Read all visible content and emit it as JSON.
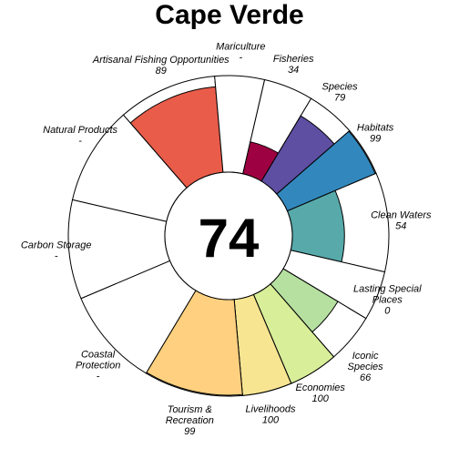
{
  "chart_data": {
    "type": "flower",
    "title": "Cape Verde",
    "center_score": "74",
    "scale_max": 100,
    "petals": [
      {
        "name": "Natural Products",
        "lines": [
          "Natural Products"
        ],
        "value_label": "-",
        "score": null,
        "weight": 1,
        "color": "#ffffff"
      },
      {
        "name": "Artisanal Fishing Opportunities",
        "lines": [
          "Artisanal Fishing Opportunities"
        ],
        "value_label": "89",
        "score": 89,
        "weight": 1,
        "color": "#e95c4a"
      },
      {
        "name": "Mariculture",
        "lines": [
          "Mariculture"
        ],
        "value_label": "-",
        "score": null,
        "weight": 0.5,
        "color": "#ffffff"
      },
      {
        "name": "Fisheries",
        "lines": [
          "Fisheries"
        ],
        "value_label": "34",
        "score": 34,
        "weight": 0.5,
        "color": "#9e0142"
      },
      {
        "name": "Species",
        "lines": [
          "Species"
        ],
        "value_label": "79",
        "score": 79,
        "weight": 0.5,
        "color": "#5e4fa2"
      },
      {
        "name": "Habitats",
        "lines": [
          "Habitats"
        ],
        "value_label": "99",
        "score": 99,
        "weight": 0.5,
        "color": "#3288bd"
      },
      {
        "name": "Clean Waters",
        "lines": [
          "Clean Waters"
        ],
        "value_label": "54",
        "score": 54,
        "weight": 1,
        "color": "#57a9aa"
      },
      {
        "name": "Lasting Special Places",
        "lines": [
          "Lasting Special",
          "Places"
        ],
        "value_label": "0",
        "score": 0,
        "weight": 0.5,
        "color": "#ffffff"
      },
      {
        "name": "Iconic Species",
        "lines": [
          "Iconic",
          "Species"
        ],
        "value_label": "66",
        "score": 66,
        "weight": 0.5,
        "color": "#b6e0a0"
      },
      {
        "name": "Economies",
        "lines": [
          "Economies"
        ],
        "value_label": "100",
        "score": 100,
        "weight": 0.5,
        "color": "#d9ee99"
      },
      {
        "name": "Livelihoods",
        "lines": [
          "Livelihoods"
        ],
        "value_label": "100",
        "score": 100,
        "weight": 0.5,
        "color": "#f7e592"
      },
      {
        "name": "Tourism & Recreation",
        "lines": [
          "Tourism &",
          "Recreation"
        ],
        "value_label": "99",
        "score": 99,
        "weight": 1,
        "color": "#fed07f"
      },
      {
        "name": "Coastal Protection",
        "lines": [
          "Coastal",
          "Protection"
        ],
        "value_label": "-",
        "score": null,
        "weight": 1,
        "color": "#ffffff"
      },
      {
        "name": "Carbon Storage",
        "lines": [
          "Carbon Storage"
        ],
        "value_label": "-",
        "score": null,
        "weight": 1,
        "color": "#ffffff"
      }
    ]
  }
}
